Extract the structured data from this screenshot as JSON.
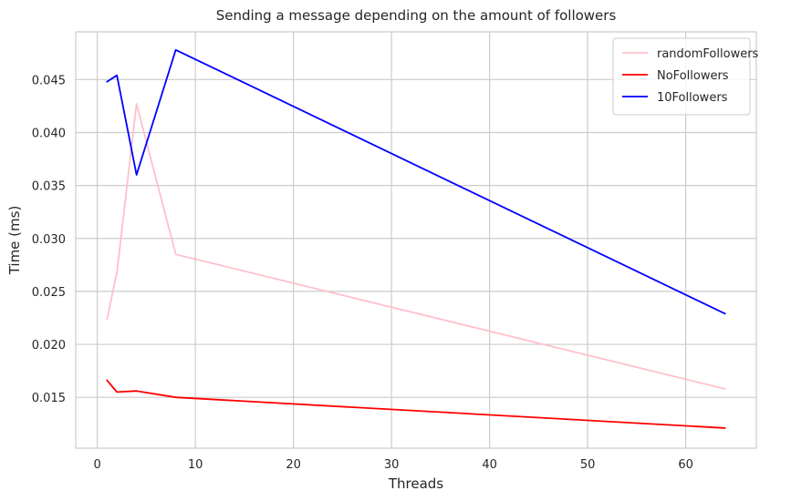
{
  "chart_data": {
    "type": "line",
    "title": "Sending a message depending on the amount of followers",
    "xlabel": "Threads",
    "ylabel": "Time (ms)",
    "xlim": [
      -2.2,
      67.2
    ],
    "ylim": [
      0.0102,
      0.0495
    ],
    "xticks": [
      0,
      10,
      20,
      30,
      40,
      50,
      60
    ],
    "xtick_labels": [
      "0",
      "10",
      "20",
      "30",
      "40",
      "50",
      "60"
    ],
    "yticks": [
      0.015,
      0.02,
      0.025,
      0.03,
      0.035,
      0.04,
      0.045
    ],
    "ytick_labels": [
      "0.015",
      "0.020",
      "0.025",
      "0.030",
      "0.035",
      "0.040",
      "0.045"
    ],
    "grid": true,
    "legend_position": "top-right",
    "series": [
      {
        "name": "randomFollowers",
        "color": "#ffc0cb",
        "x": [
          1,
          2,
          4,
          8,
          64
        ],
        "y": [
          0.0224,
          0.0268,
          0.0427,
          0.0285,
          0.0158
        ]
      },
      {
        "name": "NoFollowers",
        "color": "#ff0000",
        "x": [
          1,
          2,
          4,
          8,
          64
        ],
        "y": [
          0.0166,
          0.0155,
          0.0156,
          0.015,
          0.0121
        ]
      },
      {
        "name": "10Followers",
        "color": "#0000ff",
        "x": [
          1,
          2,
          4,
          8,
          64
        ],
        "y": [
          0.0448,
          0.0454,
          0.036,
          0.0478,
          0.0229
        ]
      }
    ]
  }
}
